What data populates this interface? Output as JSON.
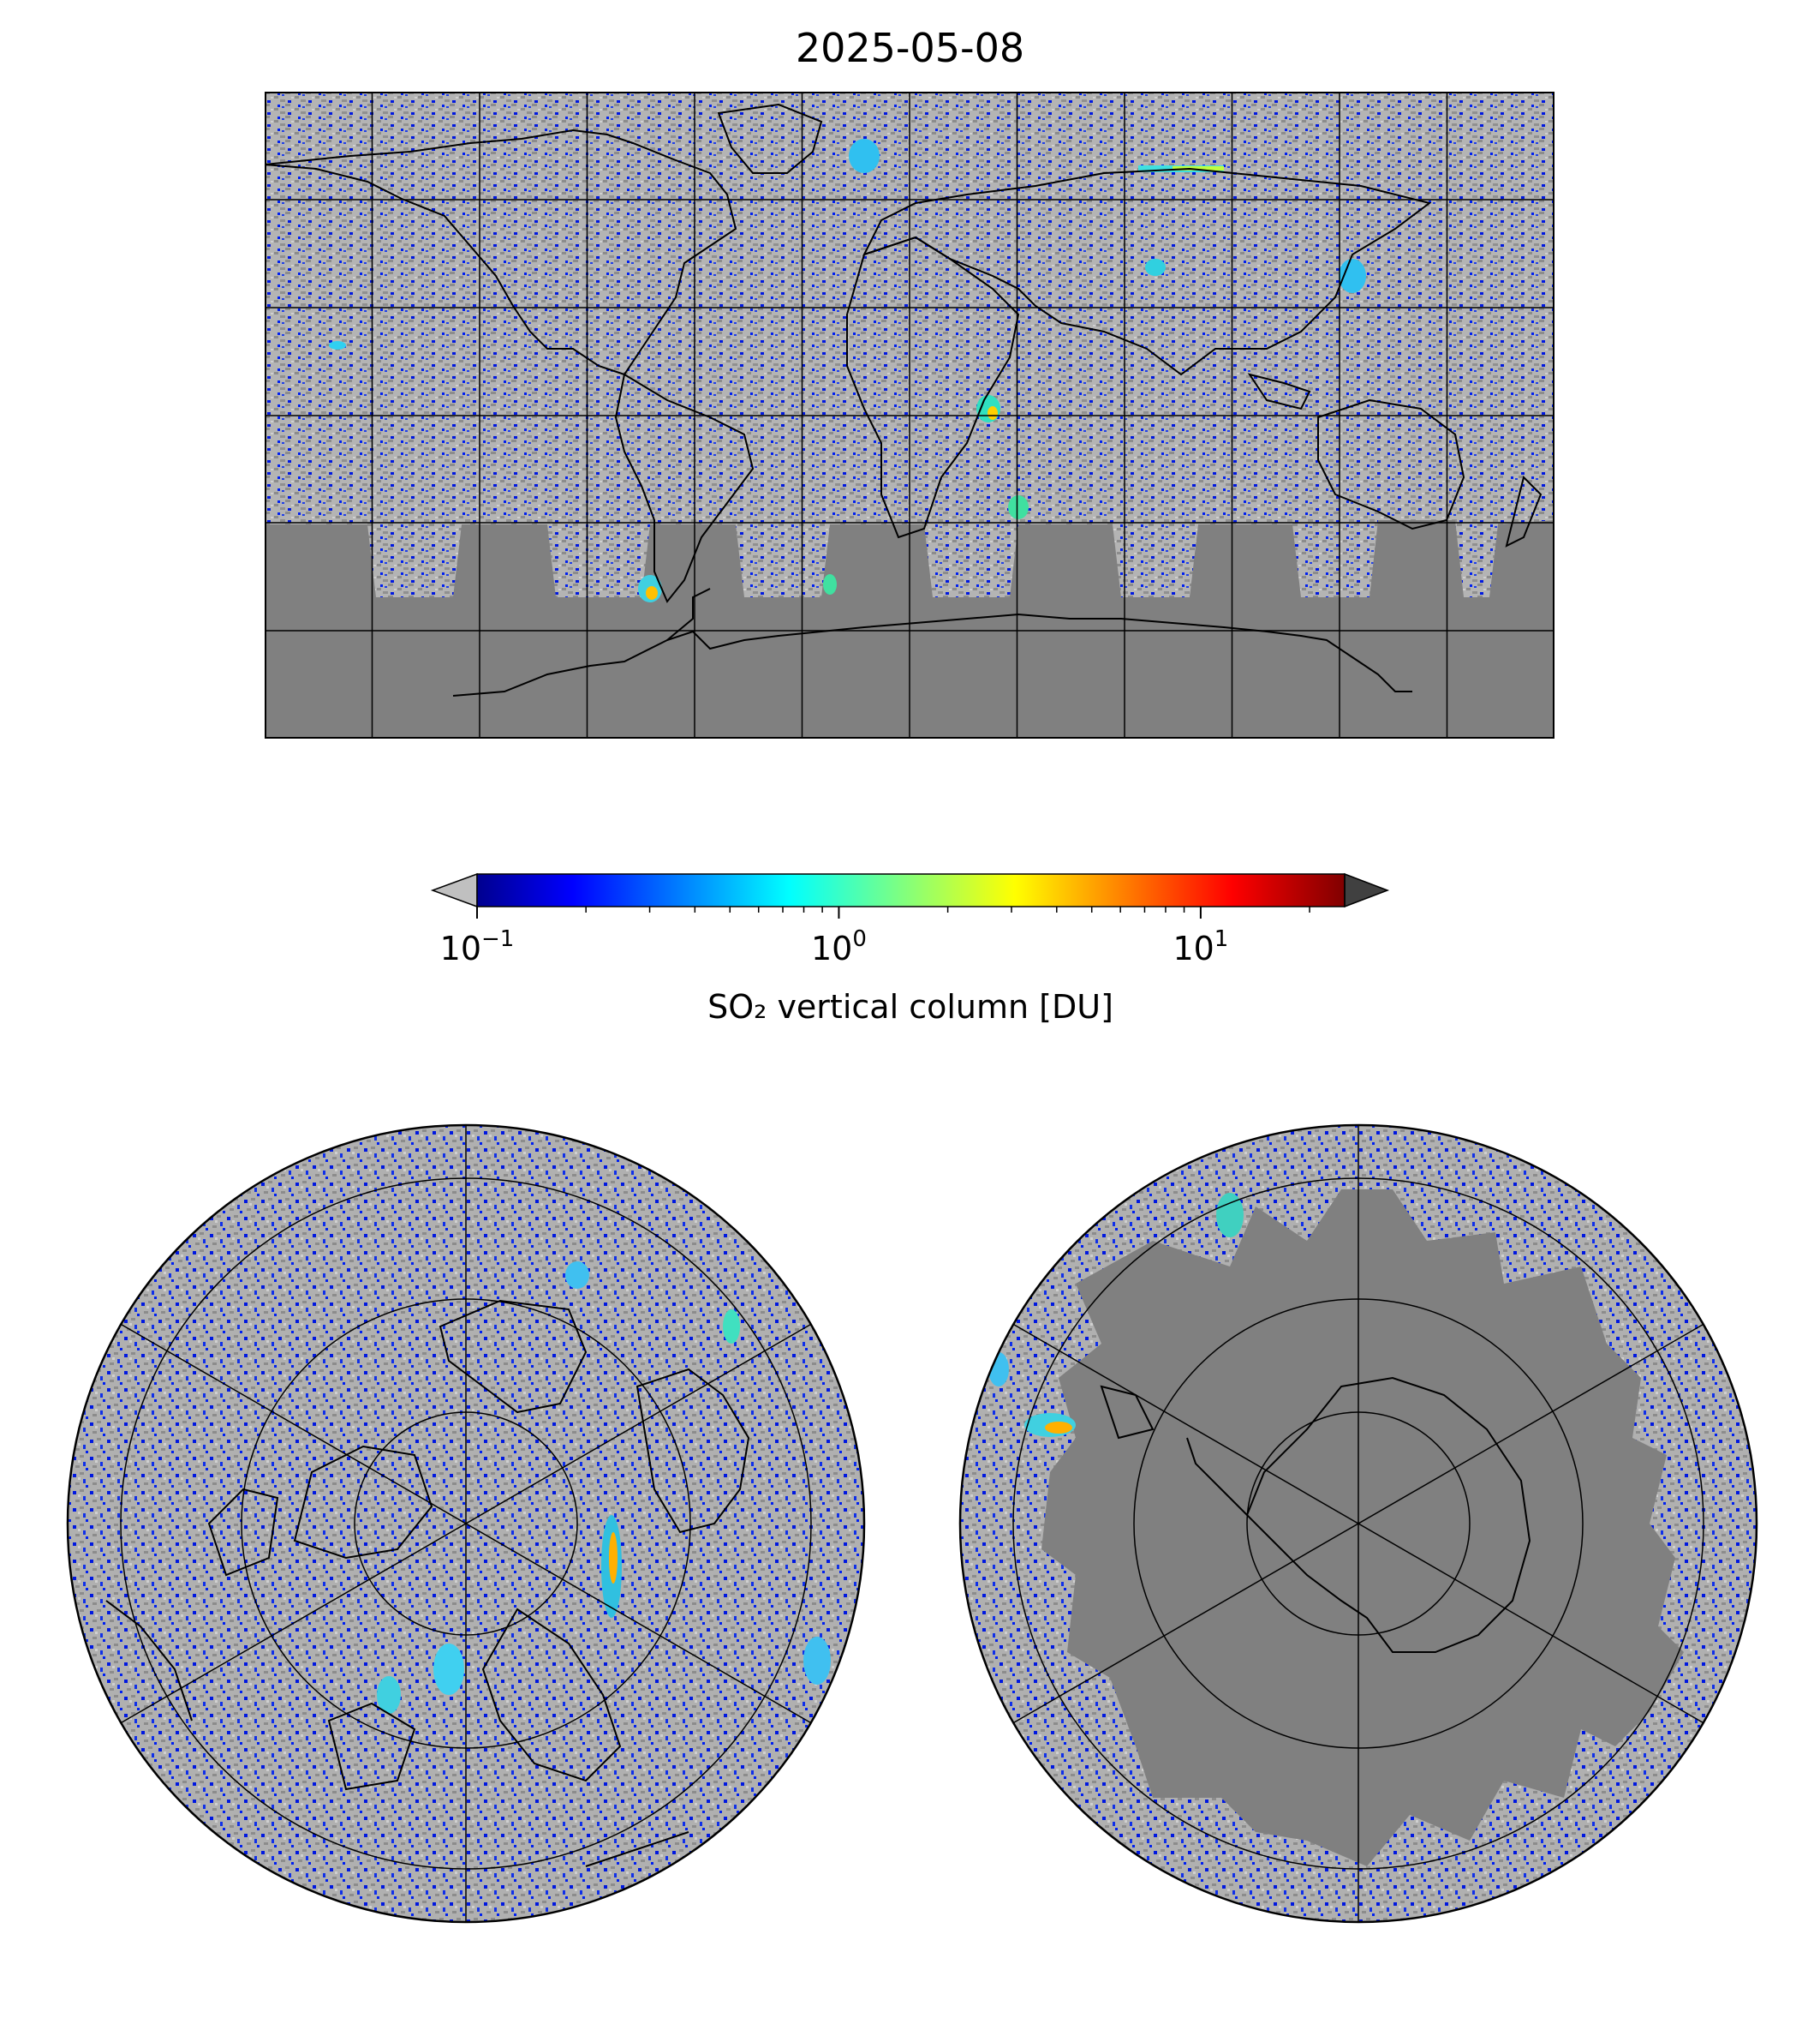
{
  "title": "2025-05-08",
  "colorbar": {
    "label": "SO₂ vertical column [DU]",
    "scale": "log",
    "range": [
      0.1,
      25
    ],
    "ticks": [
      {
        "value": 0.1,
        "base": "10",
        "exp": "−1"
      },
      {
        "value": 1,
        "base": "10",
        "exp": "0"
      },
      {
        "value": 10,
        "base": "10",
        "exp": "1"
      }
    ],
    "colormap": "jet",
    "under_color": "#c0c0c0",
    "over_color": "#404040"
  },
  "maps": {
    "world": {
      "projection": "plate-carree",
      "gridlines": true,
      "no_data_color": "#808080"
    },
    "north_polar": {
      "projection": "north-polar-stereographic",
      "gridlines": true
    },
    "south_polar": {
      "projection": "south-polar-stereographic",
      "gridlines": true
    }
  },
  "colors": {
    "low": "#0000e0",
    "mid": "#30e0e0",
    "high": "#ffe000",
    "background_gray": "#b8b8b8",
    "dark_gray": "#808080"
  }
}
